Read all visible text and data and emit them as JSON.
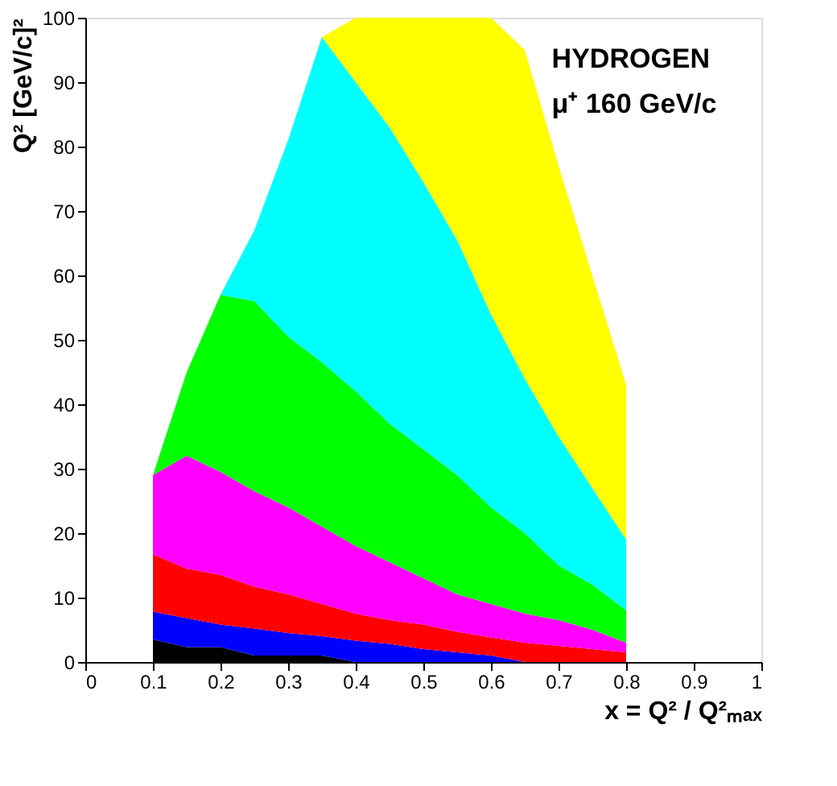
{
  "chart_data": {
    "type": "area",
    "stacked": true,
    "xlabel": "x = Q² / Q²ₘₐₓ",
    "ylabel": "Q² [GeV/c]²",
    "annotations": [
      "HYDROGEN",
      "μ⁺ 160 GeV/c"
    ],
    "x": [
      0.1,
      0.15,
      0.2,
      0.25,
      0.3,
      0.35,
      0.4,
      0.45,
      0.5,
      0.55,
      0.6,
      0.65,
      0.7,
      0.75,
      0.8
    ],
    "series": [
      {
        "color": "#000000",
        "values": [
          3.5,
          2.3,
          2.3,
          1,
          1,
          1,
          0,
          0,
          0,
          0,
          0,
          0,
          0,
          0,
          0
        ]
      },
      {
        "color": "#0000ff",
        "values": [
          4.3,
          4.5,
          3.5,
          4.2,
          3.5,
          3,
          3.3,
          2.8,
          2,
          1.5,
          1,
          0,
          0,
          0,
          0
        ]
      },
      {
        "color": "#ff0000",
        "values": [
          8.9,
          7.7,
          7.7,
          6.5,
          6,
          5,
          4.2,
          3.7,
          3.8,
          3.2,
          2.8,
          3,
          2.5,
          2,
          1.5
        ]
      },
      {
        "color": "#ff00ff",
        "values": [
          12.3,
          17.5,
          16,
          14.8,
          13.5,
          12,
          10.5,
          9,
          7.2,
          5.8,
          5.2,
          4.5,
          4,
          3,
          1.5
        ]
      },
      {
        "color": "#00ff00",
        "values": [
          0,
          13,
          27.5,
          29.5,
          26.5,
          25.5,
          24,
          21.5,
          20,
          18.5,
          15,
          12.5,
          8.5,
          7,
          5
        ]
      },
      {
        "color": "#00ffff",
        "values": [
          0,
          0,
          0,
          11,
          30.5,
          50.5,
          48,
          46,
          41.5,
          36.5,
          30,
          24,
          20,
          15,
          11
        ]
      },
      {
        "color": "#ffff00",
        "values": [
          0,
          0,
          0,
          0,
          0,
          0,
          10,
          17,
          25.5,
          34.5,
          46,
          51,
          42,
          33,
          24
        ]
      }
    ],
    "xlim": [
      0,
      1
    ],
    "xticks": [
      0,
      0.1,
      0.2,
      0.3,
      0.4,
      0.5,
      0.6,
      0.7,
      0.8,
      0.9,
      1
    ],
    "ylim": [
      0,
      100
    ],
    "yticks": [
      0,
      10,
      20,
      30,
      40,
      50,
      60,
      70,
      80,
      90,
      100
    ],
    "grid": false,
    "legend": false
  }
}
